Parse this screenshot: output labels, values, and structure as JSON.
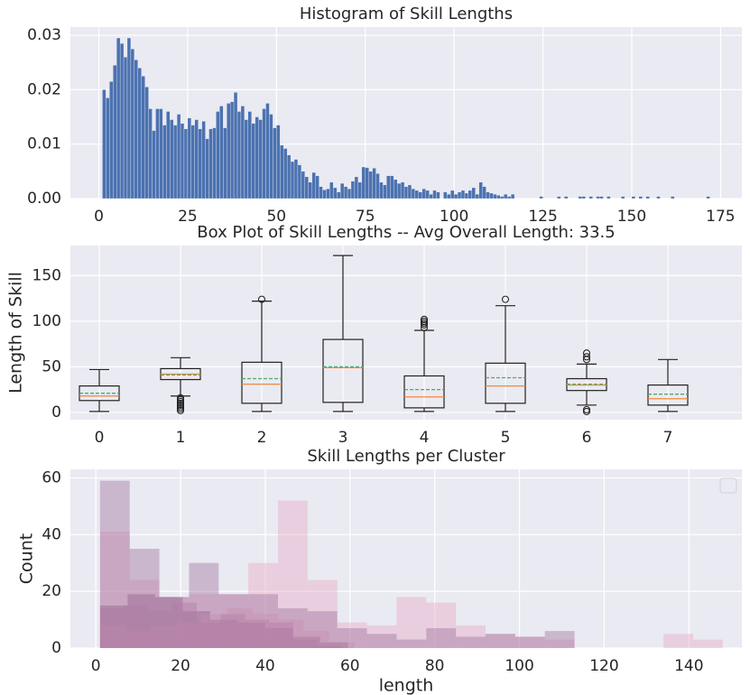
{
  "chart_data": [
    {
      "type": "histogram",
      "title": "Histogram of Skill Lengths",
      "color": "#4c72b0",
      "grid": true,
      "xlim": [
        -8,
        181
      ],
      "xticks": [
        0,
        25,
        50,
        75,
        100,
        125,
        150,
        175
      ],
      "ylim": [
        0,
        0.0315
      ],
      "yticks": [
        {
          "value": 0,
          "label": "0.00"
        },
        {
          "value": 0.01,
          "label": "0.01"
        },
        {
          "value": 0.02,
          "label": "0.02"
        },
        {
          "value": 0.03,
          "label": "0.03"
        }
      ],
      "bins": [
        1,
        2,
        3,
        4,
        5,
        6,
        7,
        8,
        9,
        10,
        11,
        12,
        13,
        14,
        15,
        16,
        17,
        18,
        19,
        20,
        21,
        22,
        23,
        24,
        25,
        26,
        27,
        28,
        29,
        30,
        31,
        32,
        33,
        34,
        35,
        36,
        37,
        38,
        39,
        40,
        41,
        42,
        43,
        44,
        45,
        46,
        47,
        48,
        49,
        50,
        51,
        52,
        53,
        54,
        55,
        56,
        57,
        58,
        59,
        60,
        61,
        62,
        63,
        64,
        65,
        66,
        67,
        68,
        69,
        70,
        71,
        72,
        73,
        74,
        75,
        76,
        77,
        78,
        79,
        80,
        81,
        82,
        83,
        84,
        85,
        86,
        87,
        88,
        89,
        90,
        91,
        92,
        93,
        94,
        95,
        96,
        97,
        98,
        99,
        100,
        101,
        102,
        103,
        104,
        105,
        106,
        107,
        108,
        109,
        110,
        111,
        112,
        113,
        114,
        115,
        116,
        117,
        118,
        119,
        120,
        121,
        122,
        123,
        124,
        125,
        126,
        127,
        128,
        129,
        130,
        131,
        132,
        133,
        134,
        135,
        136,
        137,
        138,
        139,
        140,
        141,
        142,
        143,
        144,
        145,
        146,
        147,
        148,
        149,
        150,
        151,
        152,
        153,
        154,
        155,
        156,
        157,
        158,
        159,
        160,
        161,
        162,
        163,
        164,
        165,
        166,
        167,
        168,
        169,
        170,
        171,
        172,
        173
      ],
      "values": [
        0.02,
        0.0185,
        0.0215,
        0.0245,
        0.0295,
        0.0285,
        0.026,
        0.0295,
        0.0275,
        0.0255,
        0.024,
        0.0225,
        0.0205,
        0.0165,
        0.0125,
        0.0165,
        0.0165,
        0.0135,
        0.016,
        0.0145,
        0.0135,
        0.0155,
        0.0138,
        0.0128,
        0.0148,
        0.0135,
        0.0145,
        0.0128,
        0.0142,
        0.011,
        0.0128,
        0.013,
        0.016,
        0.017,
        0.013,
        0.0175,
        0.0178,
        0.0195,
        0.016,
        0.017,
        0.0145,
        0.016,
        0.0138,
        0.015,
        0.0145,
        0.0165,
        0.0175,
        0.0155,
        0.013,
        0.0135,
        0.0098,
        0.0092,
        0.008,
        0.0068,
        0.0072,
        0.0062,
        0.005,
        0.004,
        0.003,
        0.0048,
        0.0042,
        0.0022,
        0.0016,
        0.0018,
        0.003,
        0.002,
        0.0012,
        0.0028,
        0.0022,
        0.0018,
        0.0032,
        0.004,
        0.003,
        0.0058,
        0.0057,
        0.005,
        0.0056,
        0.0046,
        0.003,
        0.0025,
        0.0042,
        0.0042,
        0.0035,
        0.0028,
        0.003,
        0.0022,
        0.0025,
        0.0018,
        0.0015,
        0.0012,
        0.0018,
        0.0015,
        0.0008,
        0.0015,
        0.0012,
        0,
        0.0012,
        0.0008,
        0.0015,
        0.0008,
        0.0012,
        0.0015,
        0.001,
        0.0015,
        0.002,
        0.0008,
        0.003,
        0.0022,
        0.0012,
        0.001,
        0.0008,
        0.0006,
        0.0004,
        0.0008,
        0.0004,
        0.0008,
        0,
        0,
        0,
        0,
        0,
        0,
        0,
        0.0004,
        0,
        0,
        0,
        0,
        0.0004,
        0,
        0.0004,
        0,
        0,
        0,
        0.0004,
        0.0004,
        0,
        0.0004,
        0,
        0.0004,
        0.0004,
        0,
        0.0004,
        0,
        0,
        0,
        0.0004,
        0,
        0,
        0.0004,
        0,
        0.0004,
        0,
        0.0004,
        0,
        0,
        0.0004,
        0,
        0,
        0,
        0.0004,
        0,
        0,
        0,
        0,
        0,
        0,
        0,
        0,
        0,
        0.0004,
        0
      ]
    },
    {
      "type": "box",
      "title": "Box Plot of Skill Lengths -- Avg Overall Length: 33.5",
      "ylabel": "Length of Skill",
      "grid": true,
      "median_color": "#f0883e",
      "mean_color": "#55a868",
      "categories": [
        "0",
        "1",
        "2",
        "3",
        "4",
        "5",
        "6",
        "7"
      ],
      "ylim": [
        -8,
        183
      ],
      "yticks": [
        0,
        50,
        100,
        150
      ],
      "boxes": [
        {
          "whislo": 1,
          "q1": 13,
          "med": 18,
          "q3": 29,
          "whishi": 47,
          "mean": 21,
          "fliers": []
        },
        {
          "whislo": 18,
          "q1": 36,
          "med": 42,
          "q3": 48,
          "whishi": 60,
          "mean": 41,
          "fliers": [
            2,
            4,
            6,
            8,
            10,
            12,
            14,
            16
          ]
        },
        {
          "whislo": 1,
          "q1": 10,
          "med": 31,
          "q3": 55,
          "whishi": 122,
          "mean": 37,
          "fliers": [
            124
          ]
        },
        {
          "whislo": 1,
          "q1": 11,
          "med": 49,
          "q3": 80,
          "whishi": 172,
          "mean": 50,
          "fliers": []
        },
        {
          "whislo": 1,
          "q1": 5,
          "med": 17,
          "q3": 40,
          "whishi": 90,
          "mean": 25,
          "fliers": [
            93,
            96,
            98,
            100,
            102
          ]
        },
        {
          "whislo": 1,
          "q1": 10,
          "med": 29,
          "q3": 54,
          "whishi": 117,
          "mean": 38,
          "fliers": [
            124
          ]
        },
        {
          "whislo": 8,
          "q1": 24,
          "med": 30,
          "q3": 37,
          "whishi": 53,
          "mean": 31,
          "fliers": [
            1,
            3,
            58,
            61,
            65
          ]
        },
        {
          "whislo": 1,
          "q1": 8,
          "med": 15,
          "q3": 30,
          "whishi": 58,
          "mean": 20,
          "fliers": []
        }
      ]
    },
    {
      "type": "histogram",
      "title": "Skill Lengths per Cluster",
      "xlabel": "length",
      "ylabel": "Count",
      "grid": true,
      "legend": "upper right",
      "xlim": [
        -6,
        152.5
      ],
      "xticks": [
        0,
        20,
        40,
        60,
        80,
        100,
        120,
        140
      ],
      "ylim": [
        0,
        63
      ],
      "yticks": [
        0,
        20,
        40,
        60
      ],
      "series": [
        {
          "color": "#e6a5c1",
          "bins": [
            1,
            8,
            15,
            22,
            29,
            36,
            43,
            50,
            57,
            64,
            71,
            78,
            85,
            92,
            99,
            106,
            113,
            120,
            127,
            134,
            141,
            148
          ],
          "values": [
            41,
            24,
            18,
            19,
            19,
            30,
            52,
            24,
            9,
            8,
            18,
            16,
            8,
            5,
            4,
            3,
            0,
            0,
            0,
            5,
            3
          ]
        },
        {
          "color": "#9c6b98",
          "bins": [
            1,
            8,
            15,
            22,
            29,
            36,
            43,
            50,
            57,
            64,
            71,
            78,
            85,
            92,
            99,
            106,
            113
          ],
          "values": [
            59,
            35,
            18,
            30,
            19,
            19,
            14,
            13,
            7,
            5,
            3,
            7,
            4,
            5,
            4,
            6
          ]
        },
        {
          "color": "#8e5a8a",
          "bins": [
            1,
            7.5,
            14,
            20.5,
            27,
            33.5,
            40,
            46.5,
            53,
            59.5
          ],
          "values": [
            15,
            19,
            18,
            13,
            10,
            9,
            7,
            4,
            2
          ]
        },
        {
          "color": "#c78fb0",
          "bins": [
            1,
            7,
            13,
            19,
            25,
            31,
            37,
            43,
            49,
            55,
            61
          ],
          "values": [
            8,
            6,
            8,
            9,
            12,
            14,
            12,
            10,
            6,
            2
          ]
        },
        {
          "color": "#b27ba6",
          "bins": [
            1,
            6.7,
            12.4,
            18.1,
            23.8,
            29.5,
            35.2,
            40.9,
            46.6,
            52.3,
            58
          ],
          "values": [
            14,
            15,
            13,
            16,
            9,
            12,
            10,
            9,
            3,
            1
          ]
        }
      ]
    }
  ]
}
